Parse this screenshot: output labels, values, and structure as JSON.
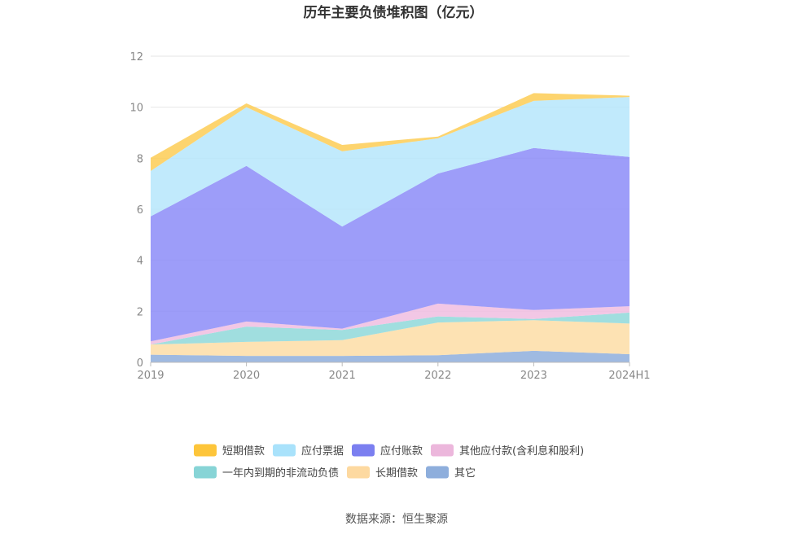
{
  "page": {
    "title": "历年主要负债堆积图（亿元）",
    "source": "数据来源：恒生聚源"
  },
  "chart_data": {
    "type": "area",
    "stacked": true,
    "title": "历年主要负债堆积图（亿元）",
    "xlabel": "",
    "ylabel": "",
    "categories": [
      "2019",
      "2020",
      "2021",
      "2022",
      "2023",
      "2024H1"
    ],
    "ylim": [
      0,
      12
    ],
    "yticks": [
      0,
      2,
      4,
      6,
      8,
      10,
      12
    ],
    "grid": true,
    "legend_position": "bottom",
    "series": [
      {
        "name": "其它",
        "color": "#8eaedc",
        "values": [
          0.3,
          0.25,
          0.25,
          0.28,
          0.45,
          0.32
        ]
      },
      {
        "name": "长期借款",
        "color": "#fddda6",
        "values": [
          0.4,
          0.55,
          0.62,
          1.28,
          1.2,
          1.2
        ]
      },
      {
        "name": "一年内到期的非流动负债",
        "color": "#8fd8d9",
        "values": [
          0.0,
          0.6,
          0.4,
          0.24,
          0.05,
          0.43
        ]
      },
      {
        "name": "其他应付款(含利息和股利)",
        "color": "#f0bde1",
        "values": [
          0.12,
          0.2,
          0.05,
          0.5,
          0.35,
          0.25
        ]
      },
      {
        "name": "应付账款",
        "color": "#8c8cf8",
        "values": [
          4.9,
          6.1,
          4.0,
          5.1,
          6.35,
          5.85
        ]
      },
      {
        "name": "应付票据",
        "color": "#b6e6fb",
        "values": [
          1.78,
          2.3,
          2.95,
          1.38,
          1.85,
          2.35
        ]
      },
      {
        "name": "短期借款",
        "color": "#fdcd55",
        "values": [
          0.52,
          0.15,
          0.25,
          0.07,
          0.3,
          0.05
        ]
      }
    ],
    "legend": [
      {
        "name": "短期借款",
        "color": "#fdc53a"
      },
      {
        "name": "应付票据",
        "color": "#a9e2fb"
      },
      {
        "name": "应付账款",
        "color": "#7b7ff0"
      },
      {
        "name": "其他应付款(含利息和股利)",
        "color": "#ecb7dc"
      },
      {
        "name": "一年内到期的非流动负债",
        "color": "#87d4d6"
      },
      {
        "name": "长期借款",
        "color": "#fdd9a0"
      },
      {
        "name": "其它",
        "color": "#8eaedc"
      }
    ]
  }
}
